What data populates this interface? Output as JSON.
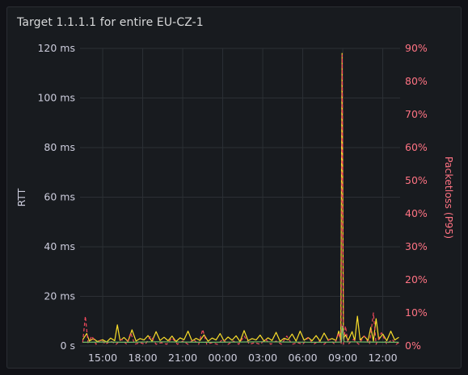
{
  "panel": {
    "title": "Target 1.1.1.1 for entire EU-CZ-1"
  },
  "colors": {
    "background": "#181b1f",
    "grid": "#2c3035",
    "left_axis_text": "#ccccdc",
    "right_axis_text": "#ff7383",
    "rtt_series": "#fade2a",
    "packetloss_series": "#f2495c",
    "baseline_series": "#73bf69"
  },
  "chart_data": {
    "type": "line",
    "title": "Target 1.1.1.1 for entire EU-CZ-1",
    "grid": true,
    "legend": "none",
    "x_tick_labels": [
      "15:00",
      "18:00",
      "21:00",
      "00:00",
      "03:00",
      "06:00",
      "09:00",
      "12:00"
    ],
    "x_tick_hours": [
      15,
      18,
      21,
      24,
      27,
      30,
      33,
      36
    ],
    "x_range_hours": [
      13.3,
      37.3
    ],
    "y_left": {
      "label": "RTT",
      "unit": "ms",
      "range": [
        0,
        120
      ],
      "tick_labels": [
        "0 s",
        "20 ms",
        "40 ms",
        "60 ms",
        "80 ms",
        "100 ms",
        "120 ms"
      ],
      "tick_values": [
        0,
        20,
        40,
        60,
        80,
        100,
        120
      ]
    },
    "y_right": {
      "label": "Packetloss (P95)",
      "unit": "%",
      "range": [
        0,
        90
      ],
      "tick_labels": [
        "0%",
        "10%",
        "20%",
        "30%",
        "40%",
        "50%",
        "60%",
        "70%",
        "80%",
        "90%"
      ],
      "tick_values": [
        0,
        10,
        20,
        30,
        40,
        50,
        60,
        70,
        80,
        90
      ]
    },
    "series": [
      {
        "axis": "left",
        "style": "solid",
        "points": [
          [
            13.5,
            2.5
          ],
          [
            13.8,
            5.0
          ],
          [
            14.0,
            2.0
          ],
          [
            14.3,
            3.0
          ],
          [
            14.6,
            1.8
          ],
          [
            15.0,
            2.5
          ],
          [
            15.3,
            1.6
          ],
          [
            15.6,
            3.2
          ],
          [
            15.9,
            2.1
          ],
          [
            16.1,
            8.5
          ],
          [
            16.3,
            2.2
          ],
          [
            16.6,
            3.4
          ],
          [
            16.9,
            1.8
          ],
          [
            17.2,
            6.5
          ],
          [
            17.5,
            2.0
          ],
          [
            17.8,
            3.0
          ],
          [
            18.1,
            2.4
          ],
          [
            18.4,
            4.2
          ],
          [
            18.7,
            1.9
          ],
          [
            19.0,
            5.8
          ],
          [
            19.3,
            2.2
          ],
          [
            19.6,
            3.5
          ],
          [
            19.9,
            2.1
          ],
          [
            20.2,
            4.0
          ],
          [
            20.5,
            1.8
          ],
          [
            20.8,
            3.3
          ],
          [
            21.1,
            2.5
          ],
          [
            21.4,
            6.0
          ],
          [
            21.7,
            2.0
          ],
          [
            22.0,
            3.1
          ],
          [
            22.3,
            2.2
          ],
          [
            22.6,
            4.5
          ],
          [
            22.9,
            1.9
          ],
          [
            23.2,
            3.2
          ],
          [
            23.5,
            2.4
          ],
          [
            23.8,
            5.0
          ],
          [
            24.1,
            2.0
          ],
          [
            24.4,
            3.6
          ],
          [
            24.7,
            2.3
          ],
          [
            25.0,
            4.1
          ],
          [
            25.3,
            1.8
          ],
          [
            25.6,
            6.2
          ],
          [
            25.9,
            2.1
          ],
          [
            26.2,
            3.0
          ],
          [
            26.5,
            2.4
          ],
          [
            26.8,
            4.4
          ],
          [
            27.1,
            2.0
          ],
          [
            27.4,
            3.3
          ],
          [
            27.7,
            2.2
          ],
          [
            28.0,
            5.5
          ],
          [
            28.3,
            1.9
          ],
          [
            28.6,
            3.1
          ],
          [
            28.9,
            2.5
          ],
          [
            29.2,
            4.8
          ],
          [
            29.5,
            2.0
          ],
          [
            29.8,
            6.0
          ],
          [
            30.1,
            2.3
          ],
          [
            30.4,
            3.4
          ],
          [
            30.7,
            2.1
          ],
          [
            31.0,
            4.2
          ],
          [
            31.3,
            2.0
          ],
          [
            31.6,
            5.2
          ],
          [
            31.9,
            2.4
          ],
          [
            32.2,
            3.0
          ],
          [
            32.5,
            2.2
          ],
          [
            32.7,
            6.0
          ],
          [
            32.85,
            2.5
          ],
          [
            32.95,
            118.0
          ],
          [
            33.05,
            3.0
          ],
          [
            33.2,
            4.5
          ],
          [
            33.4,
            2.2
          ],
          [
            33.7,
            5.8
          ],
          [
            33.9,
            2.1
          ],
          [
            34.1,
            12.0
          ],
          [
            34.3,
            2.4
          ],
          [
            34.6,
            4.0
          ],
          [
            34.9,
            2.2
          ],
          [
            35.1,
            7.5
          ],
          [
            35.3,
            2.0
          ],
          [
            35.5,
            11.0
          ],
          [
            35.7,
            2.6
          ],
          [
            36.0,
            4.8
          ],
          [
            36.3,
            2.1
          ],
          [
            36.6,
            6.0
          ],
          [
            36.9,
            2.4
          ],
          [
            37.2,
            3.5
          ]
        ]
      },
      {
        "axis": "right",
        "style": "dashed",
        "points": [
          [
            13.5,
            1.0
          ],
          [
            13.7,
            9.0
          ],
          [
            13.9,
            1.0
          ],
          [
            14.2,
            3.0
          ],
          [
            14.5,
            0.5
          ],
          [
            14.9,
            2.0
          ],
          [
            15.2,
            0.5
          ],
          [
            15.6,
            1.5
          ],
          [
            16.0,
            0.5
          ],
          [
            16.4,
            2.0
          ],
          [
            16.8,
            0.5
          ],
          [
            17.1,
            4.0
          ],
          [
            17.4,
            0.5
          ],
          [
            17.8,
            1.0
          ],
          [
            18.2,
            0.5
          ],
          [
            18.6,
            3.0
          ],
          [
            19.0,
            0.5
          ],
          [
            19.4,
            1.0
          ],
          [
            19.8,
            0.5
          ],
          [
            20.2,
            2.5
          ],
          [
            20.6,
            0.5
          ],
          [
            21.0,
            1.5
          ],
          [
            21.4,
            0.5
          ],
          [
            21.8,
            2.0
          ],
          [
            22.2,
            0.5
          ],
          [
            22.5,
            5.0
          ],
          [
            22.8,
            0.5
          ],
          [
            23.2,
            1.0
          ],
          [
            23.6,
            0.5
          ],
          [
            24.0,
            2.0
          ],
          [
            24.4,
            0.5
          ],
          [
            24.8,
            1.5
          ],
          [
            25.2,
            0.5
          ],
          [
            25.6,
            3.0
          ],
          [
            26.0,
            0.5
          ],
          [
            26.4,
            1.0
          ],
          [
            26.8,
            0.5
          ],
          [
            27.2,
            2.0
          ],
          [
            27.6,
            0.5
          ],
          [
            28.0,
            1.5
          ],
          [
            28.4,
            0.5
          ],
          [
            28.8,
            3.0
          ],
          [
            29.2,
            0.5
          ],
          [
            29.6,
            1.0
          ],
          [
            30.0,
            0.5
          ],
          [
            30.4,
            2.5
          ],
          [
            30.8,
            0.5
          ],
          [
            31.2,
            1.5
          ],
          [
            31.6,
            0.5
          ],
          [
            32.0,
            2.0
          ],
          [
            32.4,
            0.5
          ],
          [
            32.7,
            4.0
          ],
          [
            32.88,
            0.5
          ],
          [
            32.96,
            88.0
          ],
          [
            33.06,
            0.5
          ],
          [
            33.2,
            6.0
          ],
          [
            33.4,
            0.5
          ],
          [
            33.8,
            2.0
          ],
          [
            34.2,
            0.5
          ],
          [
            34.6,
            3.0
          ],
          [
            35.0,
            0.5
          ],
          [
            35.3,
            10.0
          ],
          [
            35.5,
            0.5
          ],
          [
            35.9,
            4.0
          ],
          [
            36.3,
            0.5
          ],
          [
            36.7,
            2.0
          ],
          [
            37.0,
            0.5
          ],
          [
            37.2,
            1.0
          ]
        ]
      },
      {
        "axis": "left",
        "style": "solid",
        "points": [
          [
            13.5,
            1.5
          ],
          [
            15.0,
            1.6
          ],
          [
            17.0,
            1.5
          ],
          [
            19.0,
            1.7
          ],
          [
            21.0,
            1.6
          ],
          [
            23.0,
            1.5
          ],
          [
            25.0,
            1.6
          ],
          [
            27.0,
            1.7
          ],
          [
            29.0,
            1.6
          ],
          [
            31.0,
            1.5
          ],
          [
            32.9,
            1.6
          ],
          [
            32.96,
            8.0
          ],
          [
            33.1,
            1.7
          ],
          [
            35.0,
            1.6
          ],
          [
            37.2,
            1.5
          ]
        ]
      }
    ]
  }
}
